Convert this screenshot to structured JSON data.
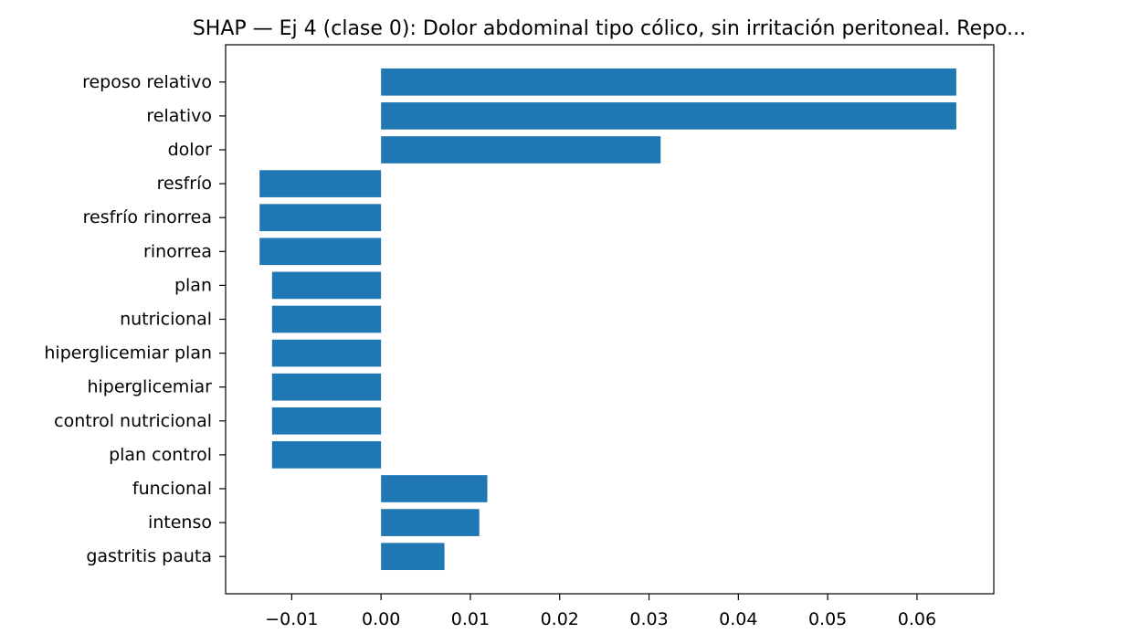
{
  "chart_data": {
    "type": "bar",
    "orientation": "horizontal",
    "title": "SHAP — Ej 4 (clase 0): Dolor abdominal tipo cólico, sin irritación peritoneal. Repo...",
    "xlabel": "",
    "ylabel": "",
    "categories": [
      "reposo relativo",
      "relativo",
      "dolor",
      "resfrío",
      "resfrío rinorrea",
      "rinorrea",
      "plan",
      "nutricional",
      "hiperglicemiar plan",
      "hiperglicemiar",
      "control nutricional",
      "plan control",
      "funcional",
      "intenso",
      "gastritis pauta"
    ],
    "values": [
      0.0644,
      0.0644,
      0.0313,
      -0.0136,
      -0.0136,
      -0.0136,
      -0.0122,
      -0.0122,
      -0.0122,
      -0.0122,
      -0.0122,
      -0.0122,
      0.0119,
      0.011,
      0.0071
    ],
    "xlim": [
      -0.0174,
      0.0686
    ],
    "xticks": [
      -0.01,
      0.0,
      0.01,
      0.02,
      0.03,
      0.04,
      0.05,
      0.06
    ],
    "xtick_labels": [
      "−0.01",
      "0.00",
      "0.01",
      "0.02",
      "0.03",
      "0.04",
      "0.05",
      "0.06"
    ],
    "grid": false,
    "bar_color": "#1f77b4"
  }
}
